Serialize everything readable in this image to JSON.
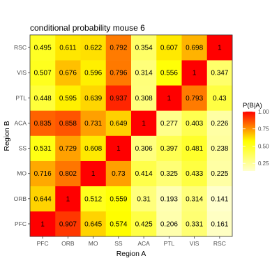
{
  "chart_data": {
    "type": "heatmap",
    "title": "conditional probability mouse 6",
    "xlabel": "Region A",
    "ylabel": "Region B",
    "x_categories": [
      "PFC",
      "ORB",
      "MO",
      "SS",
      "ACA",
      "PTL",
      "VIS",
      "RSC"
    ],
    "y_categories": [
      "PFC",
      "ORB",
      "MO",
      "SS",
      "ACA",
      "PTL",
      "VIS",
      "RSC"
    ],
    "values": [
      [
        "1",
        "0.907",
        "0.645",
        "0.574",
        "0.425",
        "0.206",
        "0.331",
        "0.161"
      ],
      [
        "0.644",
        "1",
        "0.512",
        "0.559",
        "0.31",
        "0.193",
        "0.314",
        "0.141"
      ],
      [
        "0.716",
        "0.802",
        "1",
        "0.73",
        "0.414",
        "0.325",
        "0.433",
        "0.225"
      ],
      [
        "0.531",
        "0.729",
        "0.608",
        "1",
        "0.306",
        "0.397",
        "0.481",
        "0.238"
      ],
      [
        "0.835",
        "0.858",
        "0.731",
        "0.649",
        "1",
        "0.277",
        "0.403",
        "0.226"
      ],
      [
        "0.448",
        "0.595",
        "0.639",
        "0.937",
        "0.308",
        "1",
        "0.793",
        "0.43"
      ],
      [
        "0.507",
        "0.676",
        "0.596",
        "0.796",
        "0.314",
        "0.556",
        "1",
        "0.347"
      ],
      [
        "0.495",
        "0.611",
        "0.622",
        "0.792",
        "0.354",
        "0.607",
        "0.698",
        "1"
      ]
    ],
    "color_scale": {
      "low": "#ffffcc",
      "mid": "#ffff00",
      "high": "#ff0000",
      "range": [
        0.141,
        1.0
      ]
    },
    "legend": {
      "title": "P(B|A)",
      "ticks": [
        "1.00",
        "0.75",
        "0.50",
        "0.25"
      ],
      "tick_values": [
        1.0,
        0.75,
        0.5,
        0.25
      ],
      "placement": "right"
    },
    "grid": false
  }
}
